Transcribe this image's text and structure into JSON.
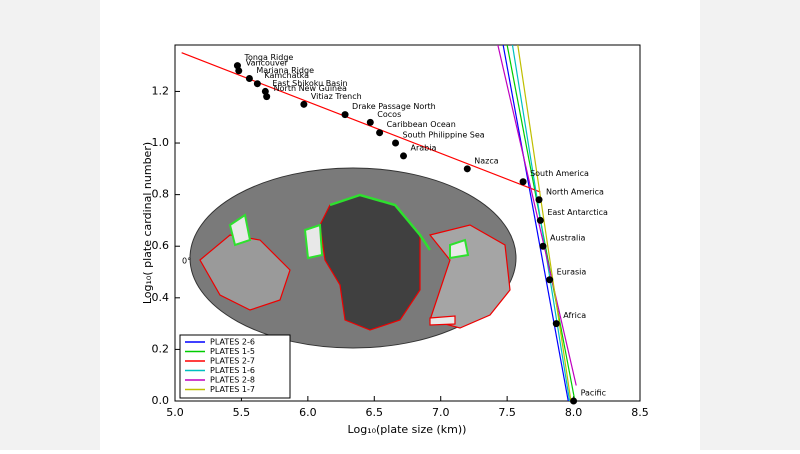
{
  "chart_data": {
    "type": "scatter",
    "xlabel": "Log₁₀(plate size (km))",
    "ylabel": "Log₁₀( plate cardinal number)",
    "map_label": "0°",
    "xlim": [
      5.0,
      8.5
    ],
    "ylim": [
      0,
      1.38
    ],
    "xticks": [
      {
        "value": 5.0,
        "label": "5.0"
      },
      5.5,
      {
        "value": 6.0,
        "label": "6.0"
      },
      6.5,
      {
        "value": 7.0,
        "label": "7.0"
      },
      7.5,
      {
        "value": 8.0,
        "label": "8.0"
      },
      8.5
    ],
    "yticks": [
      {
        "value": 0,
        "label": "0.0"
      },
      0.2,
      0.4,
      0.6,
      0.8,
      {
        "value": 1.0,
        "label": "1.0"
      },
      1.2
    ],
    "point_color": "#000000",
    "legend": "lower left",
    "points": {
      "labels": [
        "Tonga Ridge",
        "Vancouver",
        "Mariana Ridge",
        "Kamchatka",
        "East Shikoku Basin",
        "North New Guinea",
        "Vitiaz Trench",
        "Drake Passage North",
        "Cocos",
        "Caribbean Ocean",
        "South Philippine Sea",
        "Arabia",
        "Nazca",
        "South America",
        "North America",
        "East Antarctica",
        "Australia",
        "Eurasia",
        "Africa",
        "Pacific"
      ],
      "x": [
        5.47,
        5.48,
        5.56,
        5.62,
        5.68,
        5.69,
        5.97,
        6.28,
        6.47,
        6.54,
        6.66,
        6.72,
        7.2,
        7.62,
        7.74,
        7.75,
        7.77,
        7.82,
        7.87,
        8.0
      ],
      "y": [
        1.3,
        1.28,
        1.25,
        1.23,
        1.2,
        1.18,
        1.15,
        1.11,
        1.08,
        1.04,
        1.0,
        0.95,
        0.9,
        0.85,
        0.78,
        0.7,
        0.6,
        0.47,
        0.3,
        0.0
      ]
    },
    "series": [
      {
        "name": "PLATES 2-6",
        "color": "#0000ff",
        "x": [
          7.47,
          7.96
        ],
        "y": [
          1.38,
          0
        ]
      },
      {
        "name": "PLATES 1-5",
        "color": "#00cc00",
        "x": [
          7.5,
          8.01
        ],
        "y": [
          1.38,
          0
        ]
      },
      {
        "name": "PLATES 2-7",
        "color": "#ff0000",
        "x": [
          5.05,
          7.75
        ],
        "y": [
          1.35,
          0.81
        ]
      },
      {
        "name": "PLATES 1-6",
        "color": "#00bfbf",
        "x": [
          7.54,
          7.97
        ],
        "y": [
          1.38,
          0
        ]
      },
      {
        "name": "PLATES 2-8",
        "color": "#bf00bf",
        "x": [
          7.43,
          8.02
        ],
        "y": [
          1.38,
          0.06
        ]
      },
      {
        "name": "PLATES 1-7",
        "color": "#bfbf00",
        "x": [
          7.58,
          7.98
        ],
        "y": [
          1.38,
          0
        ]
      }
    ]
  }
}
